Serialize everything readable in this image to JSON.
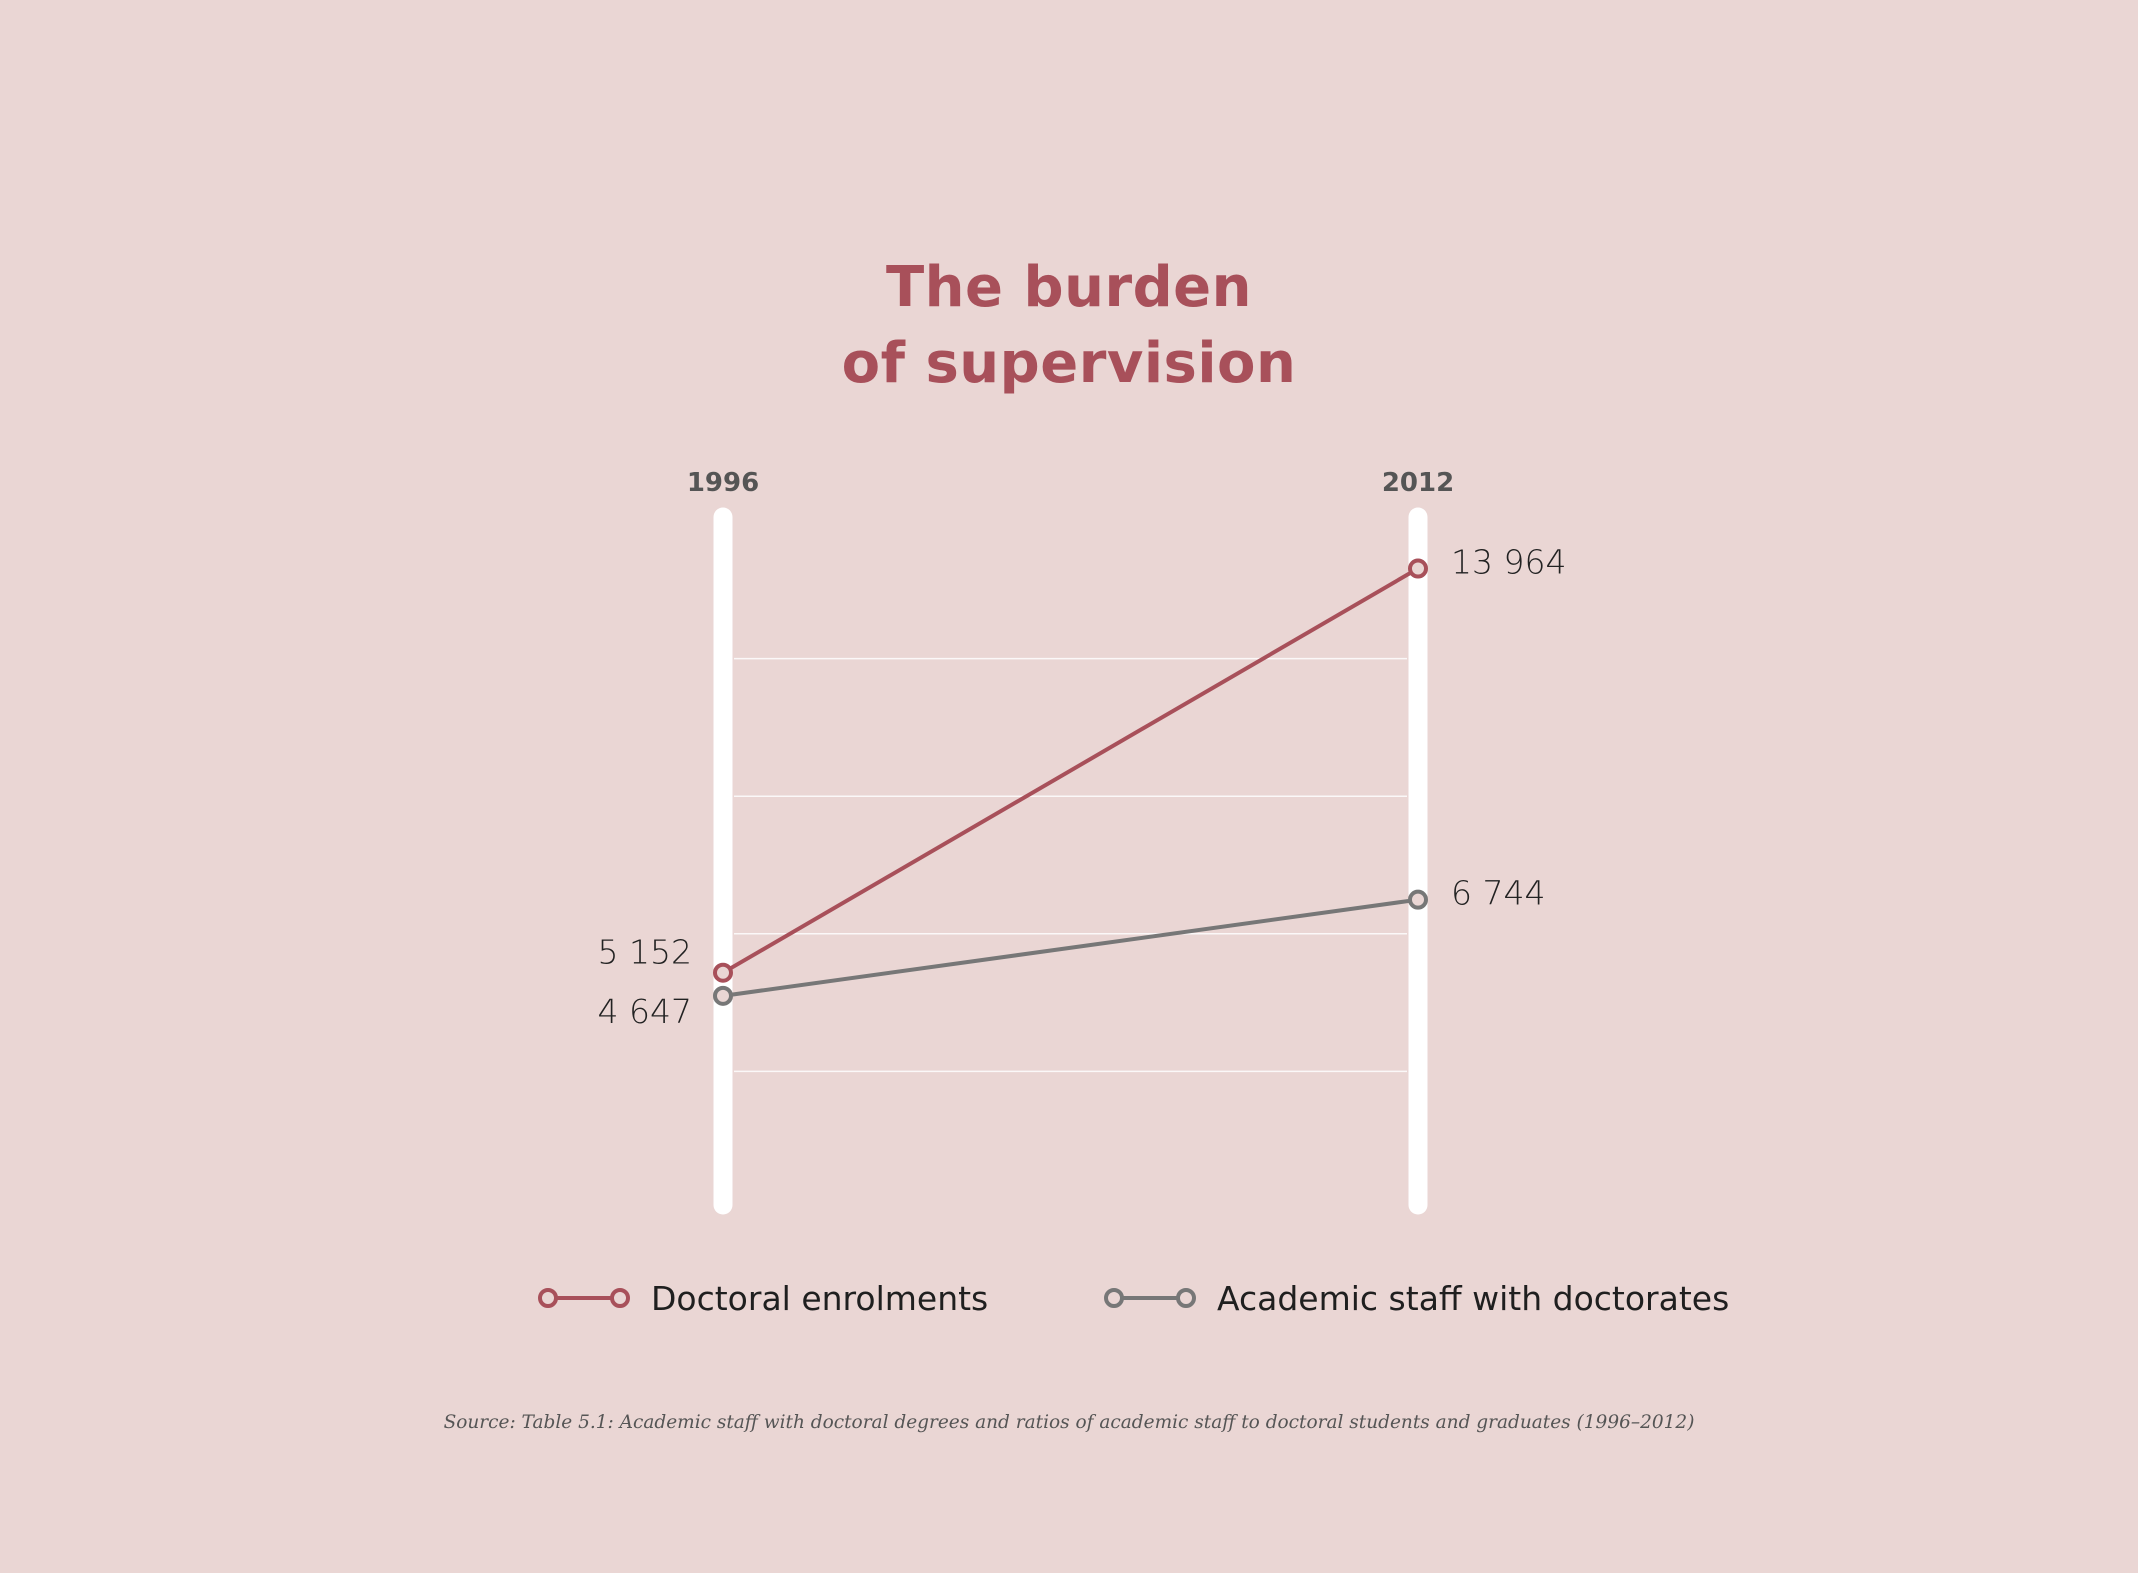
{
  "title_lines": [
    "The burden",
    "of supervision"
  ],
  "chart_data": {
    "type": "line",
    "x": [
      "1996",
      "2012"
    ],
    "series": [
      {
        "name": "Doctoral enrolments",
        "values": [
          5152,
          13964
        ],
        "labels": [
          "5 152",
          "13 964"
        ],
        "color": "#a8505a"
      },
      {
        "name": "Academic staff with doctorates",
        "values": [
          4647,
          6744
        ],
        "labels": [
          "4 647",
          "6 744"
        ],
        "color": "#777777"
      }
    ],
    "ylim": [
      0,
      15000
    ],
    "grid": true,
    "legend": "bottom"
  },
  "source": "Source: Table 5.1: Academic staff with doctoral degrees and ratios of academic staff to doctoral students and graduates (1996–2012)"
}
